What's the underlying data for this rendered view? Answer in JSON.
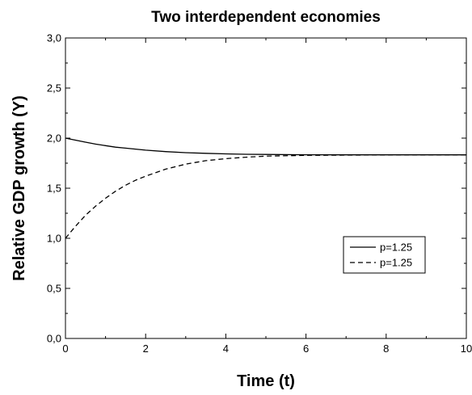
{
  "chart_data": {
    "type": "line",
    "title": "Two interdependent economies",
    "xlabel": "Time (t)",
    "ylabel": "Relative GDP growth (Y)",
    "xlim": [
      0,
      10
    ],
    "ylim": [
      0,
      3
    ],
    "x_ticks": [
      "0",
      "2",
      "4",
      "6",
      "8",
      "10"
    ],
    "y_ticks": [
      "0,0",
      "0,5",
      "1,0",
      "1,5",
      "2,0",
      "2,5",
      "3,0"
    ],
    "grid": false,
    "legend_position": "right",
    "series": [
      {
        "name": "p=1.25",
        "style": "solid",
        "color": "#000000",
        "x": [
          0,
          0.25,
          0.5,
          0.75,
          1,
          1.25,
          1.5,
          1.75,
          2,
          2.5,
          3,
          3.5,
          4,
          4.5,
          5,
          6,
          7,
          8,
          9,
          10
        ],
        "y": [
          2.0,
          1.98,
          1.96,
          1.94,
          1.925,
          1.91,
          1.9,
          1.89,
          1.88,
          1.865,
          1.855,
          1.848,
          1.843,
          1.839,
          1.837,
          1.834,
          1.833,
          1.833,
          1.833,
          1.833
        ]
      },
      {
        "name": "p=1.25",
        "style": "dashed",
        "color": "#000000",
        "x": [
          0,
          0.25,
          0.5,
          0.75,
          1,
          1.25,
          1.5,
          1.75,
          2,
          2.5,
          3,
          3.5,
          4,
          4.5,
          5,
          6,
          7,
          8,
          9,
          10
        ],
        "y": [
          1.0,
          1.12,
          1.23,
          1.32,
          1.4,
          1.47,
          1.53,
          1.58,
          1.62,
          1.69,
          1.74,
          1.775,
          1.795,
          1.81,
          1.82,
          1.828,
          1.831,
          1.832,
          1.833,
          1.833
        ]
      }
    ]
  }
}
